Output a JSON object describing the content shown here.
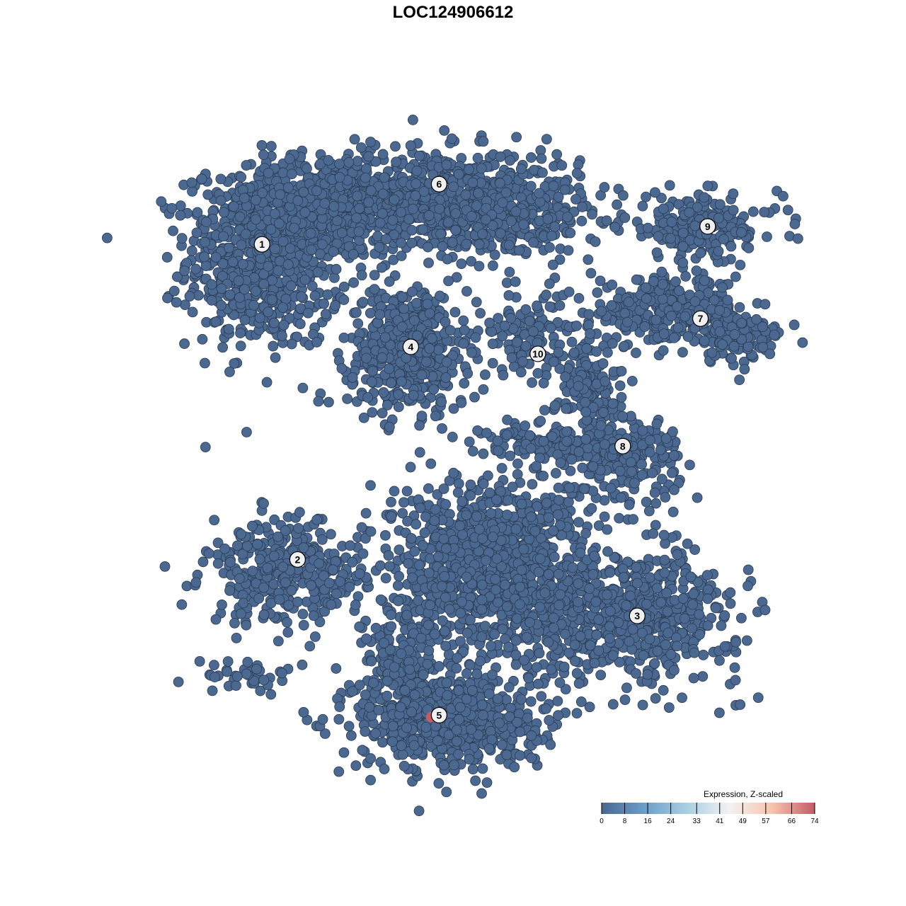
{
  "chart_data": {
    "type": "scatter",
    "title": "LOC124906612",
    "xlabel": "",
    "ylabel": "",
    "xlim": [
      -50,
      50
    ],
    "ylim": [
      -50,
      50
    ],
    "axes_visible": false,
    "grid": false,
    "point_color_default_value": 0,
    "clusters": [
      {
        "label": "1",
        "label_pos": [
          -31.7,
          32.3
        ],
        "blobs": [
          {
            "c": [
              -31,
              30
            ],
            "sd": [
              6,
              7
            ],
            "n": 700
          },
          {
            "c": [
              -22,
              38
            ],
            "sd": [
              8,
              4
            ],
            "n": 400
          }
        ]
      },
      {
        "label": "6",
        "label_pos": [
          -4.8,
          41.7
        ],
        "blobs": [
          {
            "c": [
              -5,
              40
            ],
            "sd": [
              11,
              3.5
            ],
            "n": 700
          },
          {
            "c": [
              5,
              35
            ],
            "sd": [
              6,
              3
            ],
            "n": 200
          }
        ]
      },
      {
        "label": "4",
        "label_pos": [
          -9.1,
          16.3
        ],
        "blobs": [
          {
            "c": [
              -9.5,
              16
            ],
            "sd": [
              4.5,
              4.8
            ],
            "n": 500
          }
        ]
      },
      {
        "label": "10",
        "label_pos": [
          10.2,
          15.2
        ],
        "blobs": [
          {
            "c": [
              9,
              18
            ],
            "sd": [
              4,
              3
            ],
            "n": 120
          }
        ]
      },
      {
        "label": "9",
        "label_pos": [
          36,
          35.1
        ],
        "blobs": [
          {
            "c": [
              35,
              35
            ],
            "sd": [
              6,
              2.5
            ],
            "n": 200
          }
        ]
      },
      {
        "label": "7",
        "label_pos": [
          34.9,
          20.7
        ],
        "blobs": [
          {
            "c": [
              30,
              22
            ],
            "sd": [
              6,
              2.5
            ],
            "n": 280
          },
          {
            "c": [
              40,
              18
            ],
            "sd": [
              4,
              2
            ],
            "n": 120
          }
        ]
      },
      {
        "label": "8",
        "label_pos": [
          23.1,
          0.8
        ],
        "blobs": [
          {
            "c": [
              24,
              -1
            ],
            "sd": [
              4,
              3
            ],
            "n": 200
          },
          {
            "c": [
              18,
              10
            ],
            "sd": [
              2.5,
              4
            ],
            "n": 150
          },
          {
            "c": [
              12,
              1
            ],
            "sd": [
              5,
              2
            ],
            "n": 120
          }
        ]
      },
      {
        "label": "2",
        "label_pos": [
          -26.3,
          -16.9
        ],
        "blobs": [
          {
            "c": [
              -28,
              -19
            ],
            "sd": [
              6,
              4
            ],
            "n": 350
          },
          {
            "c": [
              -34,
              -35
            ],
            "sd": [
              4,
              1.5
            ],
            "n": 40
          }
        ]
      },
      {
        "label": "3",
        "label_pos": [
          25.3,
          -25.7
        ],
        "blobs": [
          {
            "c": [
              25,
              -26
            ],
            "sd": [
              8,
              5
            ],
            "n": 550
          }
        ]
      },
      {
        "label": "5",
        "label_pos": [
          -4.8,
          -41.2
        ],
        "blobs": [
          {
            "c": [
              -3,
              -42
            ],
            "sd": [
              7,
              4
            ],
            "n": 600
          },
          {
            "c": [
              4,
              -18
            ],
            "sd": [
              8,
              7
            ],
            "n": 1100
          },
          {
            "c": [
              -10,
              -33
            ],
            "sd": [
              3,
              5
            ],
            "n": 200
          }
        ]
      }
    ],
    "highlighted_points": [
      {
        "x": -6.0,
        "y": -41.5,
        "value": 74
      }
    ],
    "colorbar": {
      "title": "Expression, Z-scaled",
      "ticks": [
        "0",
        "8",
        "16",
        "24",
        "33",
        "41",
        "49",
        "57",
        "66",
        "74"
      ],
      "range": [
        0,
        74
      ],
      "colors": [
        "#4a6890",
        "#6a9ec8",
        "#a9cfe3",
        "#f2f2f2",
        "#f7c4ae",
        "#c45c66"
      ],
      "placement": "bottom-right"
    }
  }
}
